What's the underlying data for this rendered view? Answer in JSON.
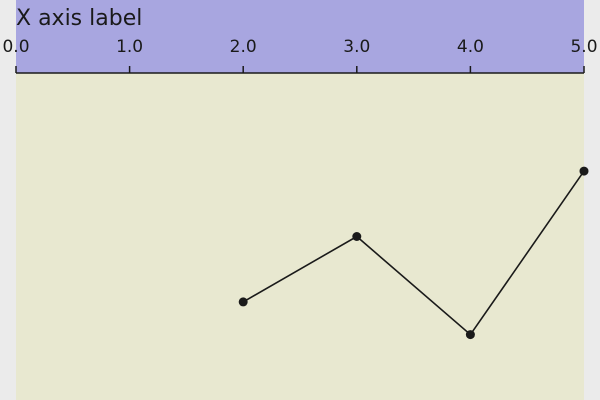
{
  "chart_data": {
    "type": "line",
    "xlabel": "X axis label",
    "x_axis_position": "top",
    "xlim": [
      0,
      5
    ],
    "ylim": [
      0,
      1
    ],
    "x_ticks": [
      "0.0",
      "1.0",
      "2.0",
      "3.0",
      "4.0",
      "5.0"
    ],
    "series": [
      {
        "x": [
          2.0,
          3.0,
          4.0,
          5.0
        ],
        "y": [
          0.3,
          0.5,
          0.2,
          0.7
        ],
        "color": "#1a1a1a",
        "marker": "circle"
      }
    ],
    "grid": false,
    "legend": "none",
    "colors": {
      "axis_band": "#a8a6e0",
      "plot_background": "#e8e8d0",
      "page_background": "#ebebeb"
    }
  }
}
